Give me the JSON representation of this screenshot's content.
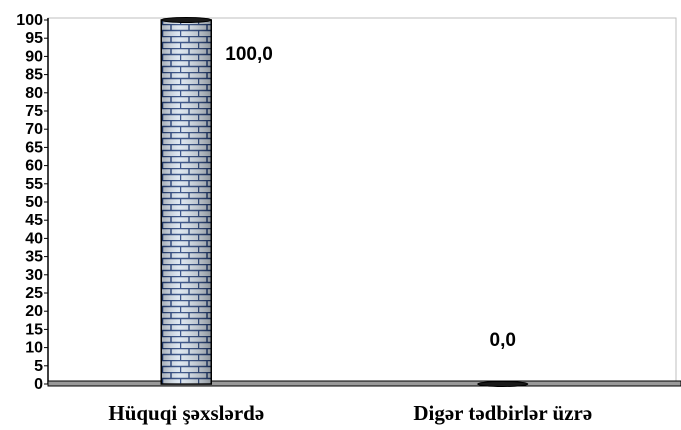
{
  "chart_data": {
    "type": "bar",
    "categories": [
      "Hüquqi şəxslərdə",
      "Digər tədbirlər üzrə"
    ],
    "values": [
      100.0,
      0.0
    ],
    "data_labels": [
      "100,0",
      "0,0"
    ],
    "yticks": [
      "0",
      "5",
      "10",
      "15",
      "20",
      "25",
      "30",
      "35",
      "40",
      "45",
      "50",
      "55",
      "60",
      "65",
      "70",
      "75",
      "80",
      "85",
      "90",
      "95",
      "100"
    ],
    "ylim": [
      0,
      100
    ],
    "grid": false,
    "legend": "none",
    "colors": {
      "bar_fill": "#d9e4ef",
      "bar_brick": "#1e3c78",
      "bar_outline": "#000000",
      "axis": "#000000",
      "floor": "#999999"
    }
  }
}
